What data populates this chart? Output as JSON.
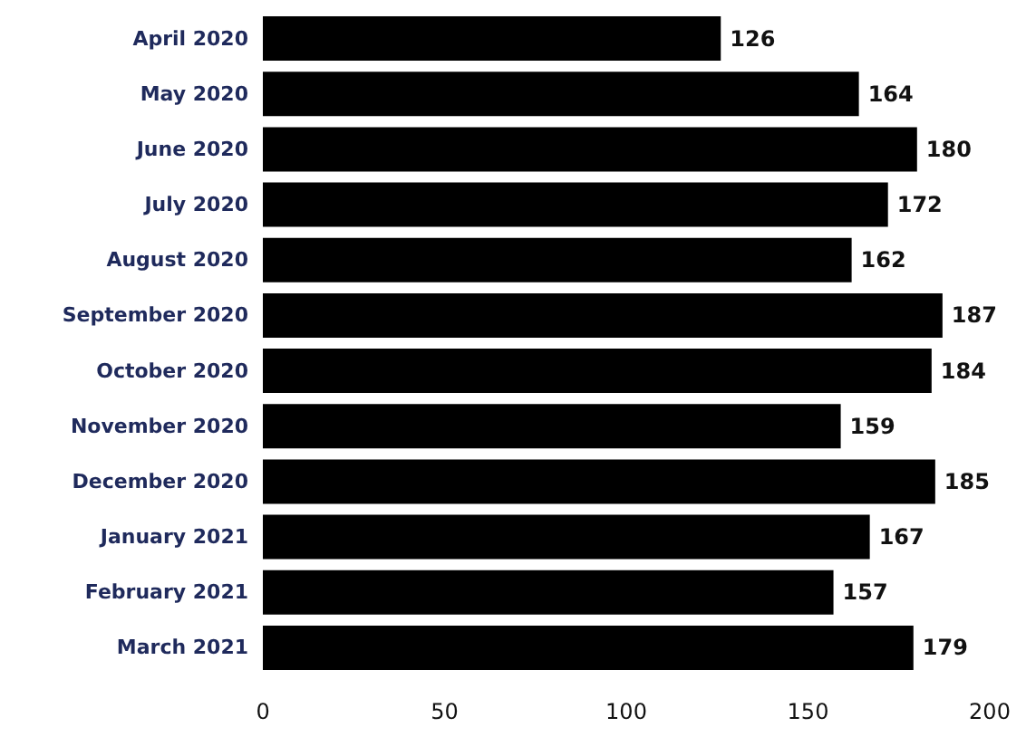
{
  "chart_data": {
    "type": "bar",
    "orientation": "horizontal",
    "categories": [
      "April 2020",
      "May 2020",
      "June 2020",
      "July 2020",
      "August 2020",
      "September 2020",
      "October 2020",
      "November 2020",
      "December 2020",
      "January 2021",
      "February 2021",
      "March 2021"
    ],
    "values": [
      126,
      164,
      180,
      172,
      162,
      187,
      184,
      159,
      185,
      167,
      157,
      179
    ],
    "color": "#000000",
    "xlim": [
      0,
      200
    ],
    "xticks": [
      0,
      50,
      100,
      150,
      200
    ],
    "grid": false,
    "data_labels": true
  }
}
